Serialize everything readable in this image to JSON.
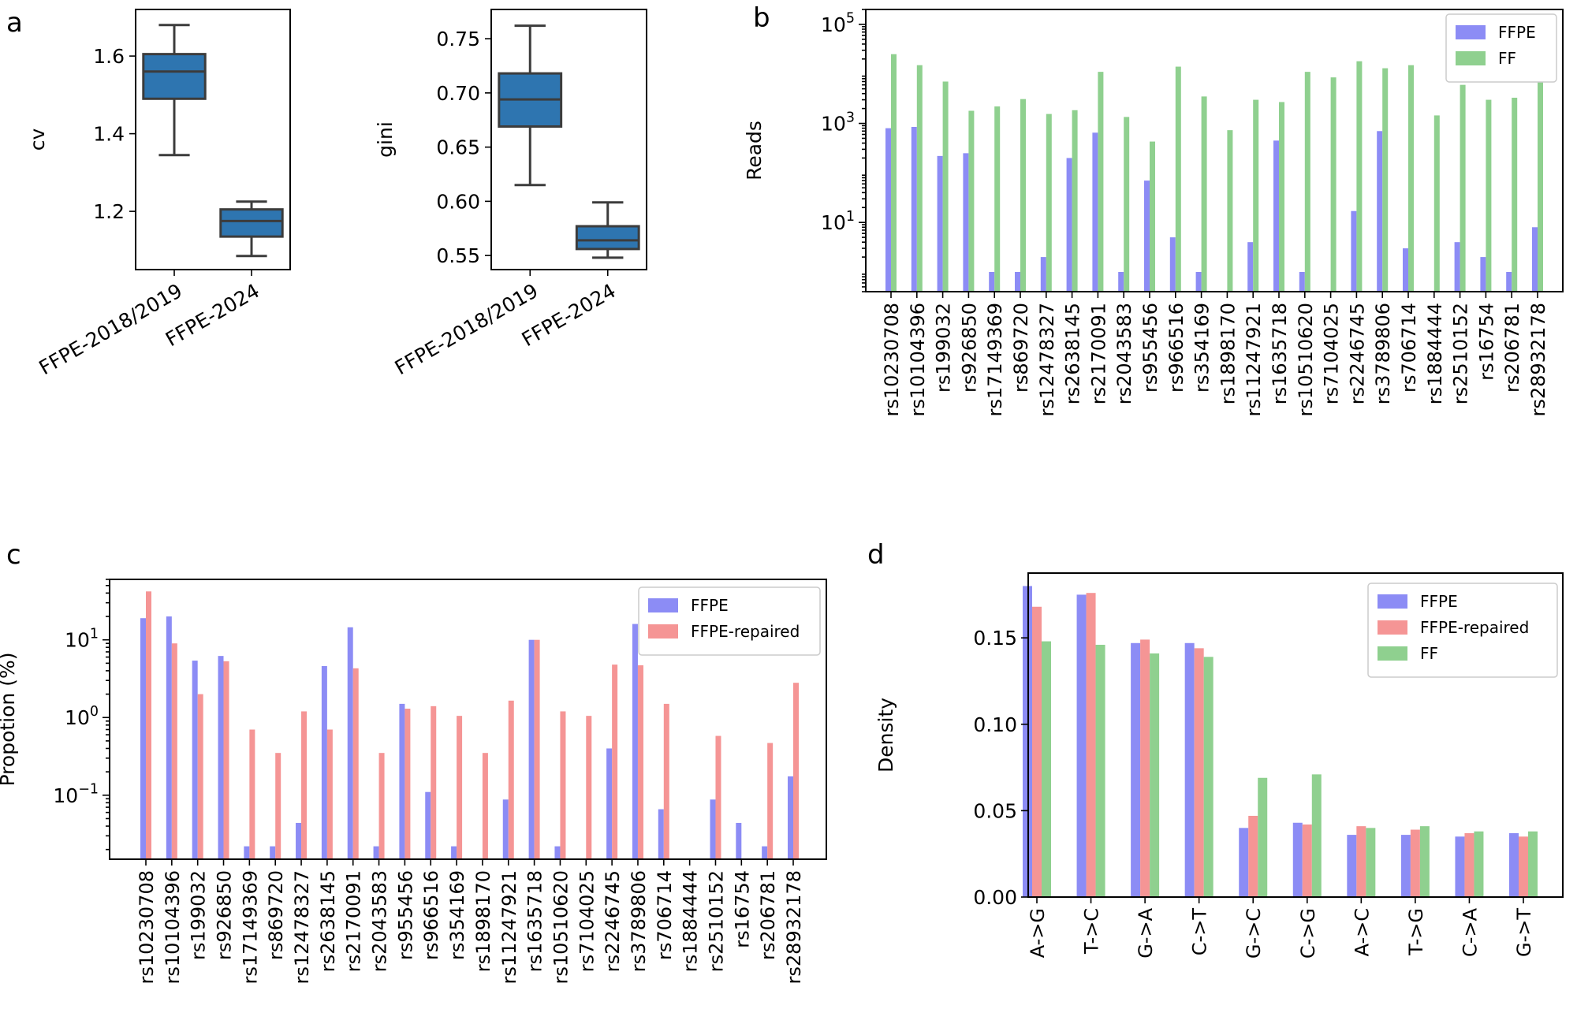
{
  "colors": {
    "box_fill": "#2e75b0",
    "box_edge": "#3c3c3c",
    "ffpe": "#8c8cf5",
    "ffpe_repaired": "#f59595",
    "ff": "#8fd08f"
  },
  "panels": {
    "a": "a",
    "b": "b",
    "c": "c",
    "d": "d"
  },
  "chart_data": [
    {
      "id": "a-cv",
      "type": "box",
      "ylabel": "cv",
      "ylim": [
        1.05,
        1.72
      ],
      "yticks": [
        1.2,
        1.4,
        1.6
      ],
      "ytick_labels": [
        "1.2",
        "1.4",
        "1.6"
      ],
      "categories": [
        "FFPE-2018/2019",
        "FFPE-2024"
      ],
      "boxes": [
        {
          "min": 1.345,
          "q1": 1.49,
          "median": 1.56,
          "q3": 1.605,
          "max": 1.68
        },
        {
          "min": 1.085,
          "q1": 1.135,
          "median": 1.175,
          "q3": 1.205,
          "max": 1.225
        }
      ]
    },
    {
      "id": "a-gini",
      "type": "box",
      "ylabel": "gini",
      "ylim": [
        0.537,
        0.777
      ],
      "yticks": [
        0.55,
        0.6,
        0.65,
        0.7,
        0.75
      ],
      "ytick_labels": [
        "0.55",
        "0.60",
        "0.65",
        "0.70",
        "0.75"
      ],
      "categories": [
        "FFPE-2018/2019",
        "FFPE-2024"
      ],
      "boxes": [
        {
          "min": 0.615,
          "q1": 0.669,
          "median": 0.694,
          "q3": 0.718,
          "max": 0.762
        },
        {
          "min": 0.548,
          "q1": 0.556,
          "median": 0.564,
          "q3": 0.577,
          "max": 0.599
        }
      ]
    },
    {
      "id": "b",
      "type": "bar",
      "scale": "log",
      "ylabel": "Reads",
      "ylim": [
        0.4,
        200000
      ],
      "yticks": [
        10,
        1000,
        100000
      ],
      "categories": [
        "rs10230708",
        "rs10104396",
        "rs199032",
        "rs926850",
        "rs17149369",
        "rs869720",
        "rs12478327",
        "rs2638145",
        "rs2170091",
        "rs2043583",
        "rs955456",
        "rs966516",
        "rs354169",
        "rs1898170",
        "rs11247921",
        "rs1635718",
        "rs10510620",
        "rs7104025",
        "rs2246745",
        "rs3789806",
        "rs706714",
        "rs1884444",
        "rs2510152",
        "rs16754",
        "rs206781",
        "rs28932178"
      ],
      "series": [
        {
          "name": "FFPE",
          "values": [
            800,
            850,
            220,
            250,
            1,
            1,
            2,
            200,
            650,
            1,
            70,
            5,
            1,
            null,
            4,
            450,
            1,
            null,
            17,
            700,
            3,
            null,
            4,
            2,
            1,
            8
          ]
        },
        {
          "name": "FF",
          "values": [
            25000,
            15000,
            7000,
            1800,
            2200,
            3100,
            1550,
            1850,
            11000,
            1350,
            430,
            14000,
            3500,
            730,
            3000,
            2700,
            11000,
            8500,
            18000,
            13000,
            15000,
            1450,
            6000,
            3000,
            3300,
            40000
          ]
        }
      ]
    },
    {
      "id": "c",
      "type": "bar",
      "scale": "log",
      "ylabel": "Propotion (%)",
      "ylim": [
        0.015,
        60
      ],
      "yticks": [
        0.1,
        1,
        10
      ],
      "categories": [
        "rs10230708",
        "rs10104396",
        "rs199032",
        "rs926850",
        "rs17149369",
        "rs869720",
        "rs12478327",
        "rs2638145",
        "rs2170091",
        "rs2043583",
        "rs955456",
        "rs966516",
        "rs354169",
        "rs1898170",
        "rs11247921",
        "rs1635718",
        "rs10510620",
        "rs7104025",
        "rs2246745",
        "rs3789806",
        "rs706714",
        "rs1884444",
        "rs2510152",
        "rs16754",
        "rs206781",
        "rs28932178"
      ],
      "series": [
        {
          "name": "FFPE",
          "values": [
            19,
            20,
            5.4,
            6.2,
            0.022,
            0.022,
            0.044,
            4.6,
            14.5,
            0.022,
            1.5,
            0.11,
            0.022,
            null,
            0.088,
            10,
            0.022,
            null,
            0.4,
            16,
            0.066,
            null,
            0.088,
            0.044,
            0.022,
            0.175
          ]
        },
        {
          "name": "FFPE-repaired",
          "values": [
            42,
            9,
            2,
            5.3,
            0.7,
            0.35,
            1.2,
            0.7,
            4.3,
            0.35,
            1.3,
            1.4,
            1.05,
            0.35,
            1.65,
            10,
            1.2,
            1.05,
            4.8,
            4.7,
            1.5,
            null,
            0.58,
            null,
            0.47,
            2.8
          ]
        }
      ]
    },
    {
      "id": "d",
      "type": "bar",
      "ylabel": "Density",
      "ylim": [
        0,
        0.1875
      ],
      "yticks": [
        0,
        0.05,
        0.1,
        0.15
      ],
      "ytick_labels": [
        "0.00",
        "0.05",
        "0.10",
        "0.15"
      ],
      "categories": [
        "A->G",
        "T->C",
        "G->A",
        "C->T",
        "G->C",
        "C->G",
        "A->C",
        "T->G",
        "C->A",
        "G->T"
      ],
      "series": [
        {
          "name": "FFPE",
          "values": [
            0.18,
            0.175,
            0.147,
            0.147,
            0.04,
            0.043,
            0.036,
            0.036,
            0.035,
            0.037
          ]
        },
        {
          "name": "FFPE-repaired",
          "values": [
            0.168,
            0.176,
            0.149,
            0.144,
            0.047,
            0.042,
            0.041,
            0.039,
            0.037,
            0.035
          ]
        },
        {
          "name": "FF",
          "values": [
            0.148,
            0.146,
            0.141,
            0.139,
            0.069,
            0.071,
            0.04,
            0.041,
            0.038,
            0.038
          ]
        }
      ]
    }
  ]
}
